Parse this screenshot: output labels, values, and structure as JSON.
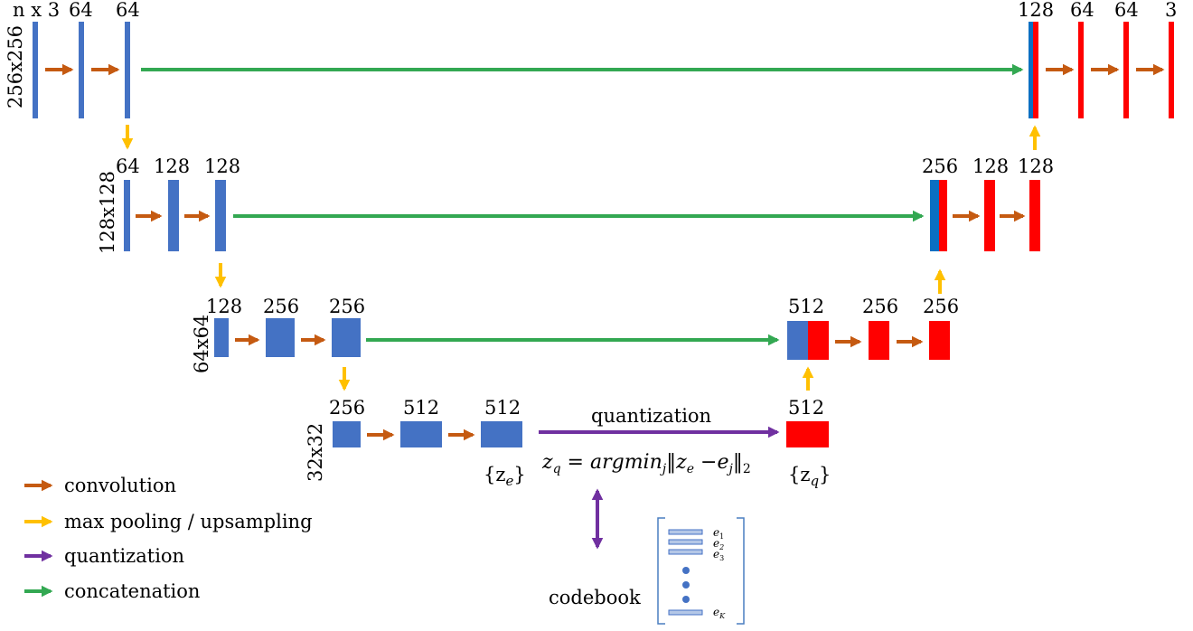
{
  "colors": {
    "encoder": "#4472c4",
    "decoder": "#ff0000",
    "concat_blue": "#0a6fc2",
    "convolution": "#c55a11",
    "pooling": "#ffc000",
    "quantization": "#7030a0",
    "concatenation": "#33a852"
  },
  "level1": {
    "size_label": "256x256",
    "enc_labels": [
      "n x 3",
      "64",
      "64"
    ],
    "dec_labels": [
      "128",
      "64",
      "64",
      "3"
    ]
  },
  "level2": {
    "size_label": "128x128",
    "enc_labels": [
      "64",
      "128",
      "128"
    ],
    "dec_labels": [
      "256",
      "128",
      "128"
    ]
  },
  "level3": {
    "size_label": "64x64",
    "enc_labels": [
      "128",
      "256",
      "256"
    ],
    "dec_labels": [
      "512",
      "256",
      "256"
    ]
  },
  "level4": {
    "size_label": "32x32",
    "enc_labels": [
      "256",
      "512",
      "512"
    ],
    "dec_label": "512",
    "ze_label": "{z",
    "ze_sub": "e",
    "ze_close": "}",
    "zq_label": "{z",
    "zq_sub": "q",
    "zq_close": "}"
  },
  "quantization": {
    "label": "quantization",
    "formula": "z_q = argmin_j‖z_e − e_j‖_2"
  },
  "codebook": {
    "label": "codebook",
    "entries": [
      "e1",
      "e2",
      "e3",
      "eK"
    ]
  },
  "legend": {
    "items": [
      {
        "label": "convolution",
        "color_key": "convolution",
        "icon": "arrow-right-icon"
      },
      {
        "label": "max pooling / upsampling",
        "color_key": "pooling",
        "icon": "arrow-right-icon"
      },
      {
        "label": "quantization",
        "color_key": "quantization",
        "icon": "arrow-right-icon"
      },
      {
        "label": "concatenation",
        "color_key": "concatenation",
        "icon": "arrow-right-icon"
      }
    ]
  }
}
